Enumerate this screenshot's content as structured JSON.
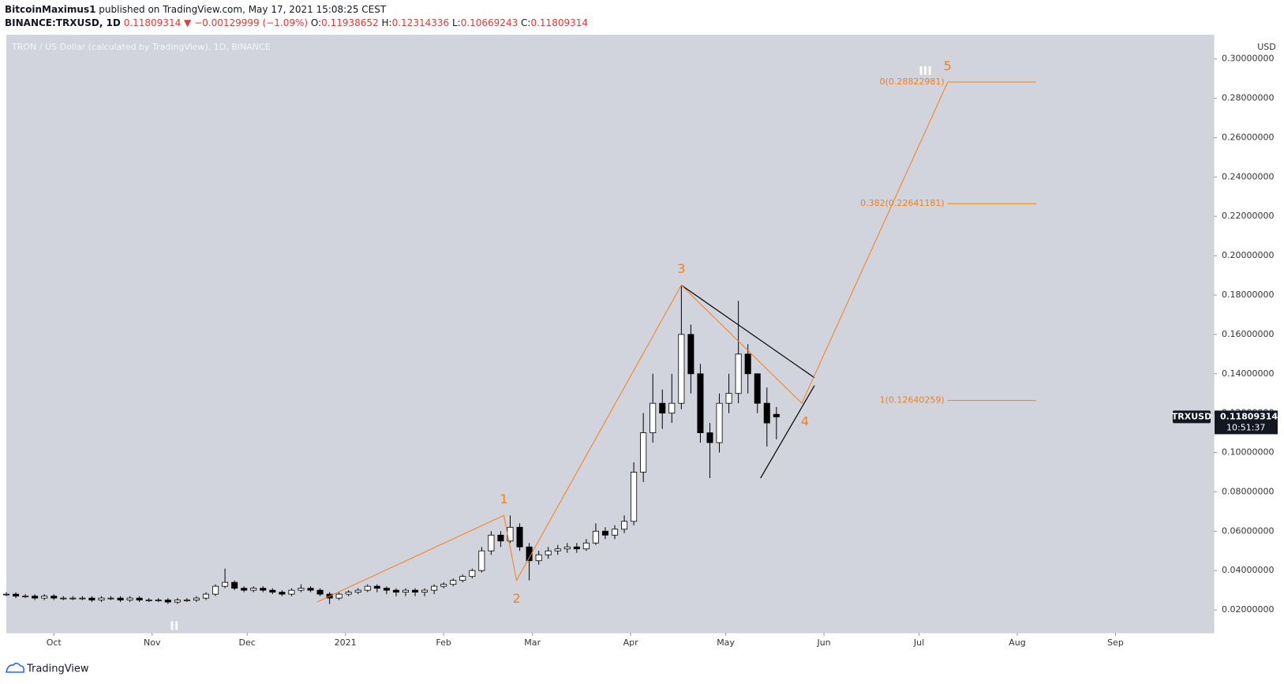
{
  "header": {
    "publisher": "BitcoinMaximus1",
    "published": "published on TradingView.com, May 17, 2021 15:08:25 CEST",
    "symbol": "BINANCE:TRXUSD, 1D",
    "last": "0.11809314",
    "arrow": "▼",
    "change": "−0.00129999 (−1.09%)",
    "ohlc": [
      {
        "key": "O:",
        "value": "0.11938652"
      },
      {
        "key": "H:",
        "value": "0.12314336"
      },
      {
        "key": "L:",
        "value": "0.10669243"
      },
      {
        "key": "C:",
        "value": "0.11809314"
      }
    ]
  },
  "footer": "TradingView",
  "chart_data": {
    "type": "candlestick",
    "legend": "TRON / US Dollar (calculated by TradingView), 1D, BINANCE",
    "y_axis_label": "USD",
    "up_color": "#ffffff",
    "down_color": "#000000",
    "wick_color": "#000000",
    "annotation_color": "#f57f17",
    "trend_color": "#000000",
    "xlim": [
      -15,
      366
    ],
    "ylim": [
      0.0084,
      0.3123
    ],
    "xticks": [
      {
        "value": 0,
        "label": "Oct"
      },
      {
        "value": 31,
        "label": "Nov"
      },
      {
        "value": 61,
        "label": "Dec"
      },
      {
        "value": 92,
        "label": "2021"
      },
      {
        "value": 123,
        "label": "Feb"
      },
      {
        "value": 151,
        "label": "Mar"
      },
      {
        "value": 182,
        "label": "Apr"
      },
      {
        "value": 212,
        "label": "May"
      },
      {
        "value": 243,
        "label": "Jun"
      },
      {
        "value": 273,
        "label": "Jul"
      },
      {
        "value": 304,
        "label": "Aug"
      },
      {
        "value": 335,
        "label": "Sep"
      }
    ],
    "yticks": [
      {
        "value": 0.02,
        "label": "0.02000000"
      },
      {
        "value": 0.04,
        "label": "0.04000000"
      },
      {
        "value": 0.06,
        "label": "0.06000000"
      },
      {
        "value": 0.08,
        "label": "0.08000000"
      },
      {
        "value": 0.1,
        "label": "0.10000000"
      },
      {
        "value": 0.12,
        "label": "0.12000000"
      },
      {
        "value": 0.14,
        "label": "0.14000000"
      },
      {
        "value": 0.16,
        "label": "0.16000000"
      },
      {
        "value": 0.18,
        "label": "0.18000000"
      },
      {
        "value": 0.2,
        "label": "0.20000000"
      },
      {
        "value": 0.22,
        "label": "0.22000000"
      },
      {
        "value": 0.24,
        "label": "0.24000000"
      },
      {
        "value": 0.26,
        "label": "0.26000000"
      },
      {
        "value": 0.28,
        "label": "0.28000000"
      },
      {
        "value": 0.3,
        "label": "0.30000000"
      }
    ],
    "x": [
      -15,
      -12,
      -9,
      -6,
      -3,
      0,
      3,
      6,
      9,
      12,
      15,
      18,
      21,
      24,
      27,
      30,
      33,
      36,
      39,
      42,
      45,
      48,
      51,
      54,
      57,
      60,
      63,
      66,
      69,
      72,
      75,
      78,
      81,
      84,
      87,
      90,
      93,
      96,
      99,
      102,
      105,
      108,
      111,
      114,
      117,
      120,
      123,
      126,
      129,
      132,
      135,
      138,
      141,
      144,
      147,
      150,
      153,
      156,
      159,
      162,
      165,
      168,
      171,
      174,
      177,
      180,
      183,
      186,
      189,
      192,
      195,
      198,
      201,
      204,
      207,
      210,
      213,
      216,
      219,
      222,
      225,
      228
    ],
    "open": [
      0.028,
      0.028,
      0.027,
      0.027,
      0.026,
      0.027,
      0.026,
      0.026,
      0.026,
      0.026,
      0.025,
      0.026,
      0.026,
      0.025,
      0.026,
      0.025,
      0.025,
      0.025,
      0.024,
      0.025,
      0.025,
      0.026,
      0.028,
      0.032,
      0.034,
      0.031,
      0.03,
      0.031,
      0.03,
      0.029,
      0.028,
      0.03,
      0.031,
      0.03,
      0.028,
      0.026,
      0.028,
      0.029,
      0.03,
      0.032,
      0.031,
      0.03,
      0.029,
      0.03,
      0.029,
      0.03,
      0.032,
      0.033,
      0.035,
      0.037,
      0.04,
      0.05,
      0.058,
      0.055,
      0.062,
      0.052,
      0.045,
      0.048,
      0.05,
      0.051,
      0.052,
      0.051,
      0.054,
      0.06,
      0.058,
      0.061,
      0.065,
      0.09,
      0.11,
      0.125,
      0.12,
      0.125,
      0.16,
      0.14,
      0.11,
      0.105,
      0.125,
      0.13,
      0.15,
      0.14,
      0.125,
      0.11938652
    ],
    "high": [
      0.029,
      0.029,
      0.028,
      0.028,
      0.028,
      0.028,
      0.027,
      0.027,
      0.027,
      0.027,
      0.027,
      0.027,
      0.027,
      0.027,
      0.027,
      0.026,
      0.026,
      0.026,
      0.026,
      0.026,
      0.027,
      0.029,
      0.033,
      0.041,
      0.035,
      0.032,
      0.032,
      0.032,
      0.031,
      0.03,
      0.031,
      0.033,
      0.032,
      0.031,
      0.029,
      0.029,
      0.03,
      0.031,
      0.033,
      0.033,
      0.032,
      0.031,
      0.031,
      0.031,
      0.031,
      0.033,
      0.034,
      0.036,
      0.038,
      0.041,
      0.052,
      0.06,
      0.06,
      0.068,
      0.064,
      0.054,
      0.05,
      0.052,
      0.053,
      0.054,
      0.054,
      0.056,
      0.064,
      0.062,
      0.063,
      0.068,
      0.095,
      0.12,
      0.14,
      0.132,
      0.14,
      0.185,
      0.165,
      0.145,
      0.115,
      0.13,
      0.14,
      0.177,
      0.155,
      0.14,
      0.133,
      0.12314336
    ],
    "low": [
      0.027,
      0.026,
      0.026,
      0.025,
      0.025,
      0.025,
      0.025,
      0.025,
      0.025,
      0.024,
      0.024,
      0.025,
      0.024,
      0.024,
      0.024,
      0.024,
      0.024,
      0.023,
      0.023,
      0.024,
      0.024,
      0.025,
      0.027,
      0.031,
      0.03,
      0.029,
      0.029,
      0.029,
      0.028,
      0.027,
      0.027,
      0.029,
      0.029,
      0.027,
      0.023,
      0.025,
      0.027,
      0.028,
      0.029,
      0.029,
      0.028,
      0.027,
      0.027,
      0.027,
      0.027,
      0.028,
      0.031,
      0.032,
      0.034,
      0.036,
      0.039,
      0.048,
      0.052,
      0.054,
      0.05,
      0.035,
      0.043,
      0.046,
      0.048,
      0.049,
      0.049,
      0.05,
      0.053,
      0.056,
      0.056,
      0.059,
      0.063,
      0.085,
      0.105,
      0.112,
      0.115,
      0.122,
      0.13,
      0.105,
      0.087,
      0.1,
      0.12,
      0.125,
      0.13,
      0.12,
      0.103,
      0.10669243
    ],
    "close": [
      0.028,
      0.027,
      0.027,
      0.026,
      0.027,
      0.026,
      0.026,
      0.026,
      0.026,
      0.025,
      0.026,
      0.026,
      0.025,
      0.026,
      0.025,
      0.025,
      0.025,
      0.024,
      0.025,
      0.025,
      0.026,
      0.028,
      0.032,
      0.034,
      0.031,
      0.03,
      0.031,
      0.03,
      0.029,
      0.028,
      0.03,
      0.031,
      0.03,
      0.028,
      0.026,
      0.028,
      0.029,
      0.03,
      0.032,
      0.031,
      0.03,
      0.029,
      0.03,
      0.029,
      0.03,
      0.032,
      0.033,
      0.035,
      0.037,
      0.04,
      0.05,
      0.058,
      0.055,
      0.062,
      0.052,
      0.045,
      0.048,
      0.05,
      0.051,
      0.052,
      0.051,
      0.054,
      0.06,
      0.058,
      0.061,
      0.065,
      0.09,
      0.11,
      0.125,
      0.12,
      0.125,
      0.16,
      0.14,
      0.11,
      0.105,
      0.125,
      0.13,
      0.15,
      0.14,
      0.125,
      0.115,
      0.11809314
    ],
    "price_tag": {
      "symbol": "TRXUSD",
      "countdown": "10:51:37"
    },
    "wave": {
      "x": [
        83,
        142,
        146,
        198,
        236,
        282
      ],
      "y": [
        0.024,
        0.068,
        0.035,
        0.185,
        0.125,
        0.288
      ]
    },
    "wave_labels": [
      "1",
      "2",
      "3",
      "4",
      "5"
    ],
    "degree_labels": [
      "II",
      "III"
    ],
    "triangle": {
      "upper": {
        "x": [
          198,
          240
        ],
        "y": [
          0.185,
          0.138
        ]
      },
      "lower": {
        "x": [
          223,
          240
        ],
        "y": [
          0.087,
          0.134
        ]
      }
    },
    "fib": {
      "x": [
        282,
        310
      ],
      "levels": [
        {
          "value": 0.28822981,
          "label": "0(0.28822981)"
        },
        {
          "value": 0.22641181,
          "label": "0.382(0.22641181)"
        },
        {
          "value": 0.12640259,
          "label": "1(0.12640259)"
        }
      ]
    }
  }
}
